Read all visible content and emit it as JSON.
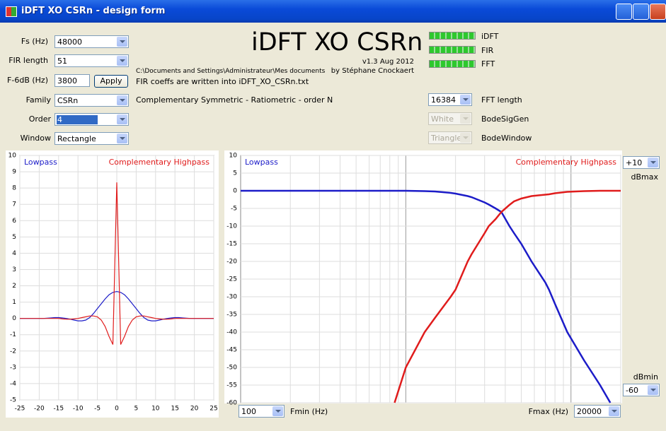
{
  "window": {
    "title": "iDFT XO CSRn - design form"
  },
  "header": {
    "title": "iDFT XO CSRn",
    "version": "v1.3 Aug 2012",
    "author": "by Stéphane Cnockaert"
  },
  "form": {
    "fs_label": "Fs (Hz)",
    "fs": "48000",
    "fir_length_label": "FIR length",
    "fir_length": "51",
    "f6db_label": "F-6dB (Hz)",
    "f6db": "3800",
    "apply": "Apply",
    "family_label": "Family",
    "family": "CSRn",
    "order_label": "Order",
    "order": "4",
    "window_label": "Window",
    "window": "Rectangle",
    "path": "C:\\Documents and Settings\\Administrateur\\Mes documents",
    "coeffs_note": "FIR coeffs are written into iDFT_XO_CSRn.txt",
    "family_desc": "Complementary Symmetric - Ratiometric - order N",
    "fft_length": "16384",
    "fft_length_label": "FFT length",
    "bodesiggen": "White",
    "bodesiggen_label": "BodeSigGen",
    "bodewindow": "Triangle",
    "bodewindow_label": "BodeWindow",
    "dbmax": "+10",
    "dbmax_label": "dBmax",
    "dbmin": "-60",
    "dbmin_label": "dBmin",
    "fmin": "100",
    "fmin_label": "Fmin (Hz)",
    "fmax": "20000",
    "fmax_label": "Fmax (Hz)"
  },
  "status": [
    {
      "label": "iDFT"
    },
    {
      "label": "FIR"
    },
    {
      "label": "FFT"
    }
  ],
  "chart_data": [
    {
      "type": "line",
      "x": [
        -25,
        -24,
        -23,
        -22,
        -21,
        -20,
        -19,
        -18,
        -17,
        -16,
        -15,
        -14,
        -13,
        -12,
        -11,
        -10,
        -9,
        -8,
        -7,
        -6,
        -5,
        -4,
        -3,
        -2,
        -1,
        0,
        1,
        2,
        3,
        4,
        5,
        6,
        7,
        8,
        9,
        10,
        11,
        12,
        13,
        14,
        15,
        16,
        17,
        18,
        19,
        20,
        21,
        22,
        23,
        24,
        25
      ],
      "series": [
        {
          "name": "Lowpass",
          "color": "#1c1cc8",
          "values": [
            0,
            0,
            0,
            0,
            0,
            0,
            0,
            0.01,
            0.03,
            0.05,
            0.05,
            0.03,
            0,
            -0.05,
            -0.1,
            -0.15,
            -0.15,
            -0.1,
            0.05,
            0.3,
            0.6,
            0.9,
            1.2,
            1.45,
            1.6,
            1.65,
            1.6,
            1.45,
            1.2,
            0.9,
            0.6,
            0.3,
            0.05,
            -0.1,
            -0.15,
            -0.15,
            -0.1,
            -0.05,
            0,
            0.03,
            0.05,
            0.05,
            0.03,
            0.01,
            0,
            0,
            0,
            0,
            0,
            0,
            0
          ]
        },
        {
          "name": "Complementary Highpass",
          "color": "#e01c1c",
          "values": [
            0,
            0,
            0,
            0,
            0,
            0,
            0,
            0,
            0,
            0,
            0,
            -0.03,
            -0.05,
            -0.05,
            -0.03,
            0,
            0.05,
            0.1,
            0.15,
            0.15,
            0.1,
            -0.1,
            -0.5,
            -1.1,
            -1.6,
            8.35,
            -1.6,
            -1.1,
            -0.5,
            -0.1,
            0.1,
            0.15,
            0.15,
            0.1,
            0.05,
            0,
            -0.03,
            -0.05,
            -0.05,
            -0.03,
            0,
            0,
            0,
            0,
            0,
            0,
            0,
            0,
            0,
            0,
            0
          ]
        }
      ],
      "xlim": [
        -25,
        25
      ],
      "ylim": [
        -5,
        10
      ],
      "xticks": [
        -25,
        -20,
        -15,
        -10,
        -5,
        0,
        5,
        10,
        15,
        20,
        25
      ],
      "yticks": [
        -5,
        -4,
        -3,
        -2,
        -1,
        0,
        1,
        2,
        3,
        4,
        5,
        6,
        7,
        8,
        9,
        10
      ],
      "grid": true
    },
    {
      "type": "line",
      "log_x": true,
      "x": [
        100,
        500,
        855,
        1000,
        1300,
        1500,
        1870,
        2000,
        2370,
        2500,
        3000,
        3180,
        3500,
        3790,
        4240,
        4520,
        5000,
        5770,
        7000,
        7360,
        8000,
        9500,
        12000,
        15000,
        17300,
        20000
      ],
      "series": [
        {
          "name": "Lowpass",
          "color": "#1c1cc8",
          "values": [
            0,
            0,
            0,
            0,
            -0.1,
            -0.2,
            -0.6,
            -0.8,
            -1.5,
            -1.8,
            -3.3,
            -3.9,
            -5,
            -6,
            -10,
            -12,
            -15,
            -20,
            -26,
            -28,
            -32,
            -40,
            -48,
            -55,
            -60,
            null
          ]
        },
        {
          "name": "Complementary Highpass",
          "color": "#e01c1c",
          "values": [
            null,
            null,
            -60,
            -50,
            -40,
            -36,
            -30,
            -28,
            -20,
            -18,
            -12,
            -10,
            -8,
            -6,
            -4,
            -3,
            -2.2,
            -1.5,
            -1.1,
            -1,
            -0.7,
            -0.3,
            -0.1,
            0,
            0,
            0
          ]
        }
      ],
      "xlim": [
        100,
        20000
      ],
      "ylim": [
        -60,
        10
      ],
      "xgrid": [
        200,
        300,
        400,
        500,
        600,
        700,
        800,
        900,
        1000,
        2000,
        3000,
        4000,
        5000,
        6000,
        7000,
        8000,
        9000,
        10000,
        20000
      ],
      "yticks": [
        -60,
        -55,
        -50,
        -45,
        -40,
        -35,
        -30,
        -25,
        -20,
        -15,
        -10,
        -5,
        0,
        5,
        10
      ],
      "grid": true
    }
  ]
}
